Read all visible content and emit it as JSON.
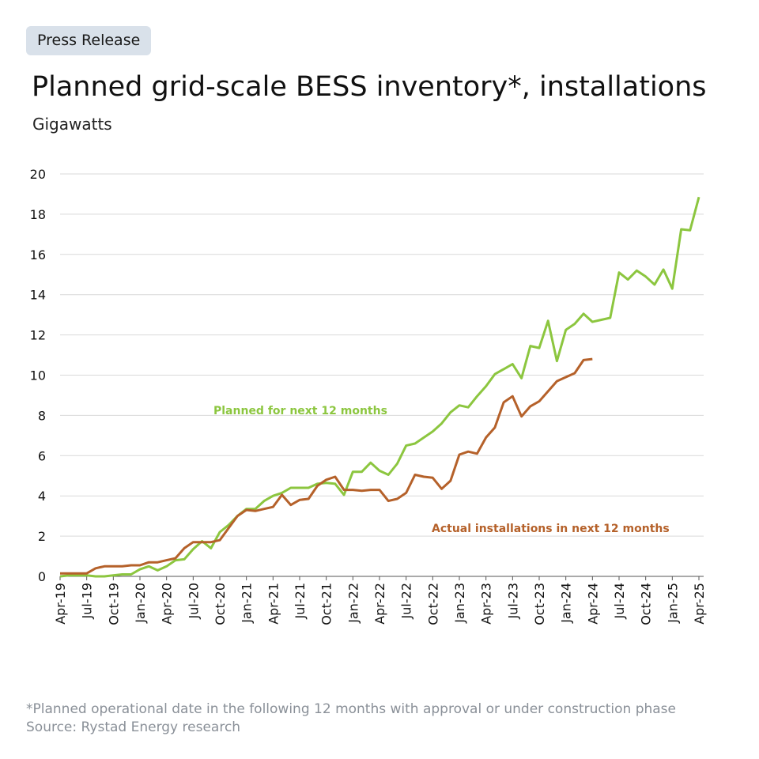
{
  "badge": "Press Release",
  "chart_data": {
    "type": "line",
    "title": "Planned grid-scale BESS inventory*, installations",
    "subtitle": "Gigawatts",
    "categories": [
      "Apr-19",
      null,
      null,
      "Jul-19",
      null,
      null,
      "Oct-19",
      null,
      null,
      "Jan-20",
      null,
      null,
      "Apr-20",
      null,
      null,
      "Jul-20",
      null,
      null,
      "Oct-20",
      null,
      null,
      "Jan-21",
      null,
      null,
      "Apr-21",
      null,
      null,
      "Jul-21",
      null,
      null,
      "Oct-21",
      null,
      null,
      "Jan-22",
      null,
      null,
      "Apr-22",
      null,
      null,
      "Jul-22",
      null,
      null,
      "Oct-22",
      null,
      null,
      "Jan-23",
      null,
      null,
      "Apr-23",
      null,
      null,
      "Jul-23",
      null,
      null,
      "Oct-23",
      null,
      null,
      "Jan-24",
      null,
      null,
      "Apr-24",
      null,
      null,
      "Jul-24",
      null,
      null,
      "Oct-24",
      null,
      null,
      "Jan-25",
      null,
      null,
      "Apr-25"
    ],
    "series": [
      {
        "name": "Planned for next 12 months",
        "color": "#8cc63f",
        "values": [
          0.0,
          0.05,
          0.05,
          0.05,
          0.0,
          0.0,
          0.05,
          0.1,
          0.1,
          0.35,
          0.5,
          0.3,
          0.5,
          0.8,
          0.85,
          1.35,
          1.75,
          1.4,
          2.2,
          2.55,
          3.0,
          3.35,
          3.35,
          3.75,
          4.0,
          4.15,
          4.4,
          4.4,
          4.4,
          4.6,
          4.65,
          4.6,
          4.05,
          5.2,
          5.2,
          5.65,
          5.25,
          5.05,
          5.6,
          6.5,
          6.6,
          6.9,
          7.2,
          7.6,
          8.15,
          8.5,
          8.4,
          8.95,
          9.45,
          10.05,
          10.3,
          10.55,
          9.85,
          11.45,
          11.35,
          12.7,
          10.7,
          12.25,
          12.55,
          13.05,
          12.65,
          12.75,
          12.85,
          15.1,
          14.75,
          15.2,
          14.9,
          14.5,
          15.25,
          14.3,
          17.25,
          17.2,
          18.85
        ]
      },
      {
        "name": "Actual installations in next 12 months",
        "color": "#b5612a",
        "values": [
          0.15,
          0.15,
          0.15,
          0.15,
          0.4,
          0.5,
          0.5,
          0.5,
          0.55,
          0.55,
          0.7,
          0.7,
          0.8,
          0.9,
          1.4,
          1.7,
          1.7,
          1.7,
          1.8,
          2.4,
          3.0,
          3.3,
          3.25,
          3.35,
          3.45,
          4.05,
          3.55,
          3.8,
          3.85,
          4.5,
          4.8,
          4.95,
          4.3,
          4.3,
          4.25,
          4.3,
          4.3,
          3.75,
          3.85,
          4.15,
          5.05,
          4.95,
          4.9,
          4.35,
          4.75,
          6.05,
          6.2,
          6.1,
          6.9,
          7.4,
          8.65,
          8.95,
          7.95,
          8.45,
          8.7,
          9.2,
          9.7,
          9.9,
          10.1,
          10.75,
          10.8,
          null,
          null,
          null,
          null,
          null,
          null,
          null,
          null,
          null,
          null,
          null,
          null
        ]
      }
    ],
    "ylim": [
      0,
      20
    ],
    "yticks": [
      0,
      2,
      4,
      6,
      8,
      10,
      12,
      14,
      16,
      18,
      20
    ],
    "grid": true
  },
  "footnotes": [
    "*Planned operational date in the following 12 months with approval or under construction phase",
    "Source: Rystad Energy research"
  ]
}
